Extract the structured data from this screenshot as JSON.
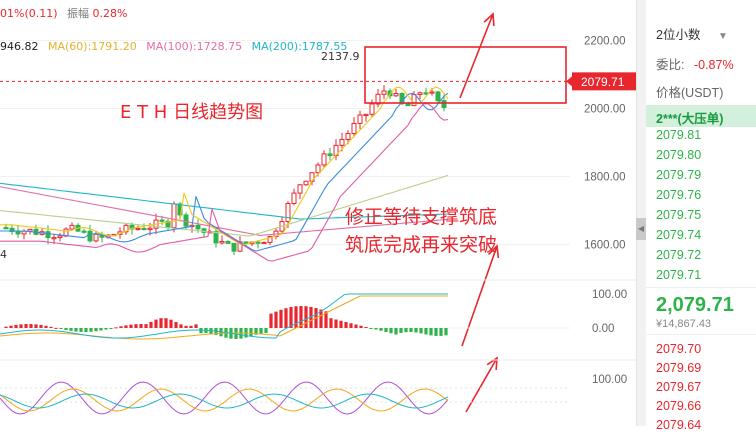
{
  "header": {
    "change_text": "01%(0.11)",
    "amplitude_label": "振幅",
    "amplitude_value": "0.28%",
    "ma_items": [
      {
        "label": "946.82",
        "color": "#222222"
      },
      {
        "label": "MA(60):1791.20",
        "color": "#e3b22c"
      },
      {
        "label": "MA(100):1728.75",
        "color": "#e36fa6"
      },
      {
        "label": "MA(200):1787.55",
        "color": "#1fb6c9"
      }
    ]
  },
  "annotations": {
    "title": "E T H  日线趋势图",
    "line1": "修正等待支撑筑底",
    "line2": "筑底完成再来突破",
    "high_label": "2137.9",
    "left_edge_label": "4"
  },
  "colors": {
    "up": "#e8262e",
    "down": "#2db34a",
    "accent": "#e8262e"
  },
  "chart_data": {
    "type": "candlestick",
    "price_axis": {
      "ticks": [
        2200,
        2000,
        1800,
        1600
      ],
      "tick_labels": [
        "2200.00",
        "2000.00",
        "1800.00",
        "1600.00"
      ],
      "range": [
        1540,
        2260
      ]
    },
    "current_price": 2079.71,
    "current_price_label": "2079.71",
    "macd_axis": {
      "tick_labels": [
        "100.00",
        "0.00"
      ]
    },
    "kdj_axis": {
      "tick_labels": [
        "100.00"
      ]
    }
  },
  "panel": {
    "decimals": "2位小数",
    "commission_label": "委比:",
    "commission_value": "-0.87%",
    "price_label": "价格(USDT)",
    "big_order_label": "2***(大压单)",
    "asks": [
      "2079.81",
      "2079.80",
      "2079.79",
      "2079.76",
      "2079.75",
      "2079.74",
      "2079.72",
      "2079.71"
    ],
    "last_price": "2,079.71",
    "last_price_cny": "¥14,867.43",
    "bids": [
      "2079.70",
      "2079.69",
      "2079.67",
      "2079.66",
      "2079.64"
    ]
  }
}
